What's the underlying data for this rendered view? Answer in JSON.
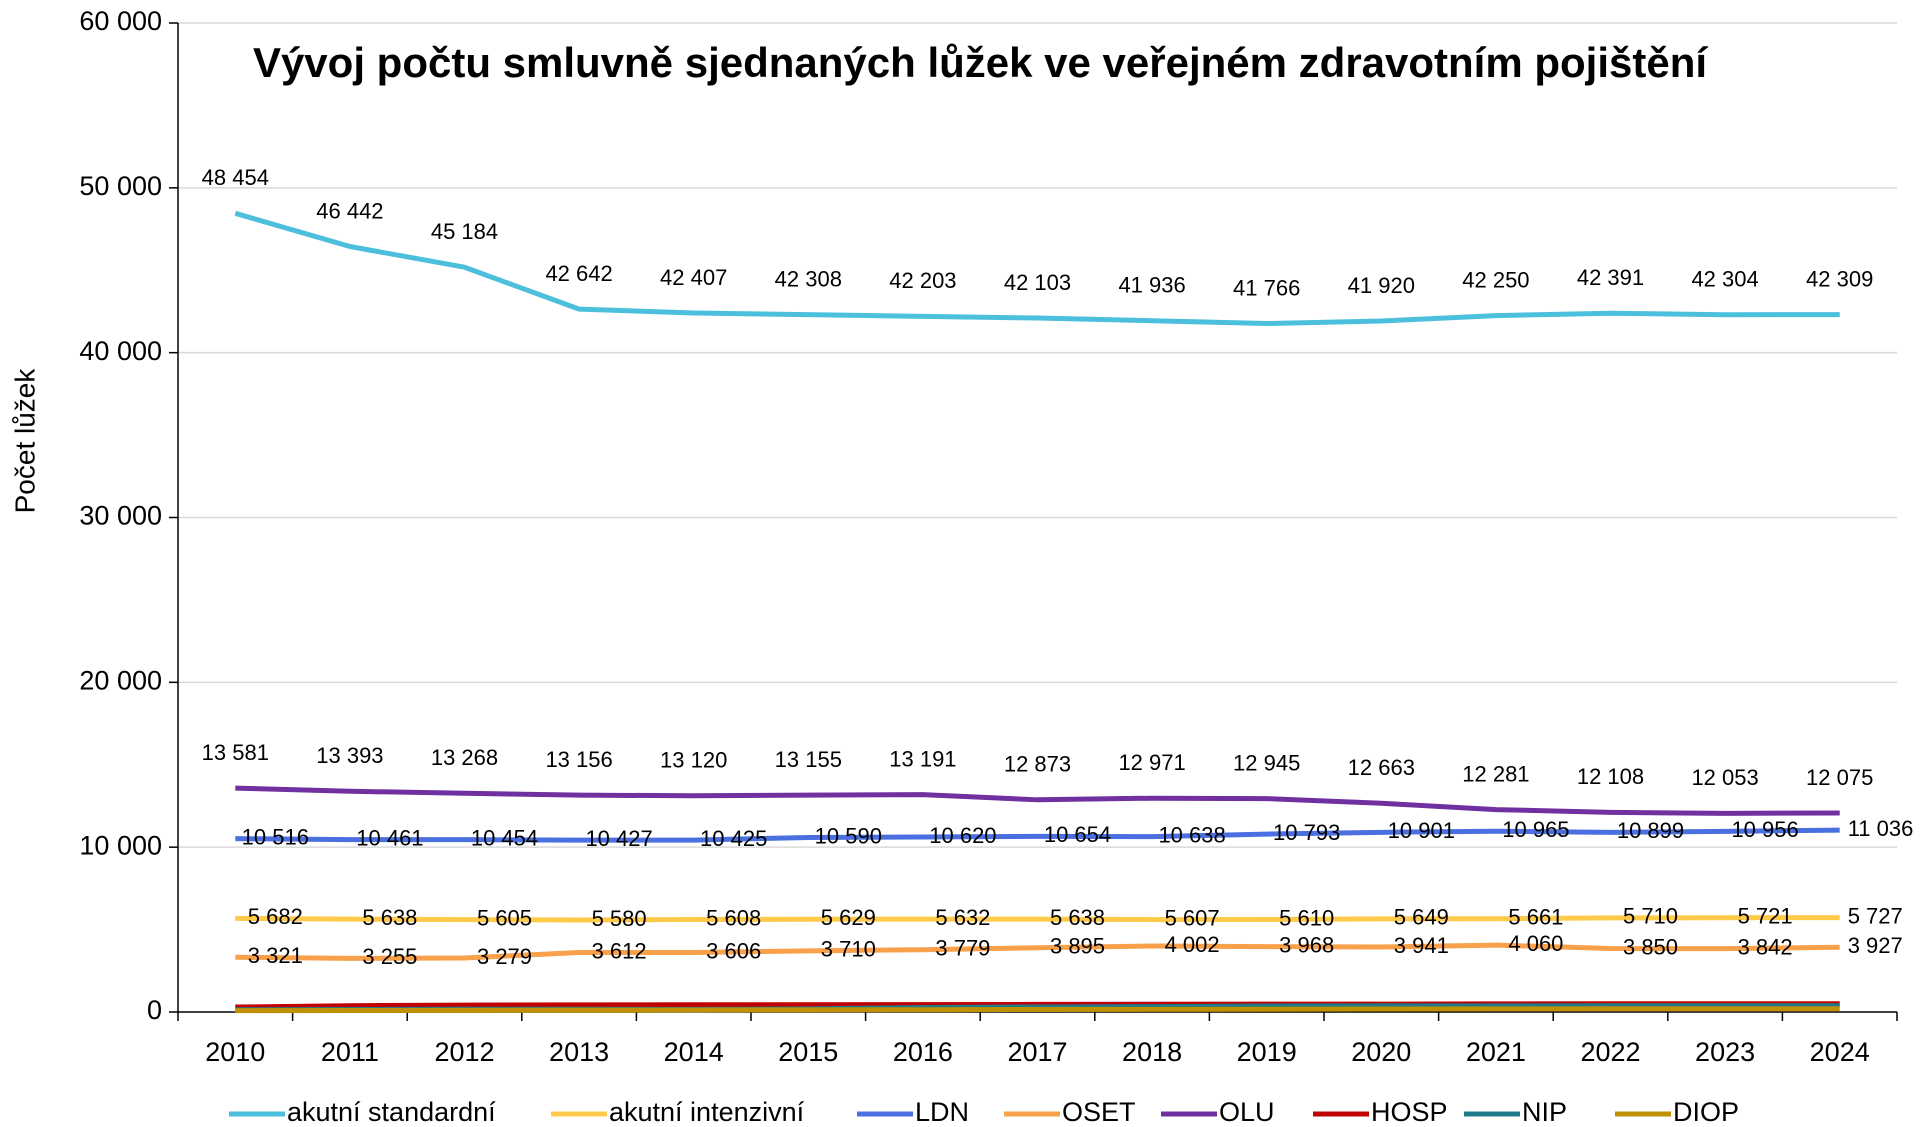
{
  "chart_data": {
    "type": "line",
    "title": "Vývoj počtu smluvně sjednaných lůžek ve veřejném zdravotním pojištění",
    "ylabel": "Počet lůžek",
    "categories": [
      "2010",
      "2011",
      "2012",
      "2013",
      "2014",
      "2015",
      "2016",
      "2017",
      "2018",
      "2019",
      "2020",
      "2021",
      "2022",
      "2023",
      "2024"
    ],
    "ylim": [
      0,
      60000
    ],
    "yticks": [
      {
        "value": 0,
        "label": "0"
      },
      {
        "value": 10000,
        "label": "10 000"
      },
      {
        "value": 20000,
        "label": "20 000"
      },
      {
        "value": 30000,
        "label": "30 000"
      },
      {
        "value": 40000,
        "label": "40 000"
      },
      {
        "value": 50000,
        "label": "50 000"
      },
      {
        "value": 60000,
        "label": "60 000"
      }
    ],
    "grid": true,
    "legend": "bottom",
    "series": [
      {
        "name": "akutní standardní",
        "color": "#4bbfdc",
        "values": [
          48454,
          46442,
          45184,
          42642,
          42407,
          42308,
          42203,
          42103,
          41936,
          41766,
          41920,
          42250,
          42391,
          42304,
          42309
        ],
        "value_labels": [
          "48 454",
          "46 442",
          "45 184",
          "42 642",
          "42 407",
          "42 308",
          "42 203",
          "42 103",
          "41 936",
          "41 766",
          "41 920",
          "42 250",
          "42 391",
          "42 304",
          "42 309"
        ]
      },
      {
        "name": "akutní intenzivní",
        "color": "#ffc94a",
        "values": [
          5682,
          5638,
          5605,
          5580,
          5608,
          5629,
          5632,
          5638,
          5607,
          5610,
          5649,
          5661,
          5710,
          5721,
          5727
        ],
        "value_labels": [
          "5 682",
          "5 638",
          "5 605",
          "5 580",
          "5 608",
          "5 629",
          "5 632",
          "5 638",
          "5 607",
          "5 610",
          "5 649",
          "5 661",
          "5 710",
          "5 721",
          "5 727"
        ]
      },
      {
        "name": "LDN",
        "color": "#4a6fe0",
        "values": [
          10516,
          10461,
          10454,
          10427,
          10425,
          10590,
          10620,
          10654,
          10638,
          10793,
          10901,
          10965,
          10899,
          10956,
          11036
        ],
        "value_labels": [
          "10 516",
          "10 461",
          "10 454",
          "10 427",
          "10 425",
          "10 590",
          "10 620",
          "10 654",
          "10 638",
          "10 793",
          "10 901",
          "10 965",
          "10 899",
          "10 956",
          "11 036"
        ]
      },
      {
        "name": "OSET",
        "color": "#f9a04b",
        "values": [
          3321,
          3255,
          3279,
          3612,
          3606,
          3710,
          3779,
          3895,
          4002,
          3968,
          3941,
          4060,
          3850,
          3842,
          3927
        ],
        "value_labels": [
          "3 321",
          "3 255",
          "3 279",
          "3 612",
          "3 606",
          "3 710",
          "3 779",
          "3 895",
          "4 002",
          "3 968",
          "3 941",
          "4 060",
          "3 850",
          "3 842",
          "3 927"
        ]
      },
      {
        "name": "OLU",
        "color": "#7030a0",
        "values": [
          13581,
          13393,
          13268,
          13156,
          13120,
          13155,
          13191,
          12873,
          12971,
          12945,
          12663,
          12281,
          12108,
          12053,
          12075
        ],
        "value_labels": [
          "13 581",
          "13 393",
          "13 268",
          "13 156",
          "13 120",
          "13 155",
          "13 191",
          "12 873",
          "12 971",
          "12 945",
          "12 663",
          "12 281",
          "12 108",
          "12 053",
          "12 075"
        ]
      },
      {
        "name": "HOSP",
        "color": "#c00000",
        "values": [
          300,
          380,
          420,
          430,
          440,
          440,
          450,
          460,
          470,
          480,
          480,
          490,
          500,
          500,
          500
        ]
      },
      {
        "name": "NIP",
        "color": "#1f7a8c",
        "values": [
          133,
          149,
          167,
          167,
          157,
          187,
          274,
          307,
          327,
          367,
          374,
          370,
          382,
          380,
          381
        ]
      },
      {
        "name": "DIOP",
        "color": "#bf9000",
        "values": [
          80,
          90,
          100,
          110,
          120,
          130,
          140,
          150,
          160,
          170,
          180,
          190,
          200,
          200,
          200
        ]
      }
    ]
  }
}
